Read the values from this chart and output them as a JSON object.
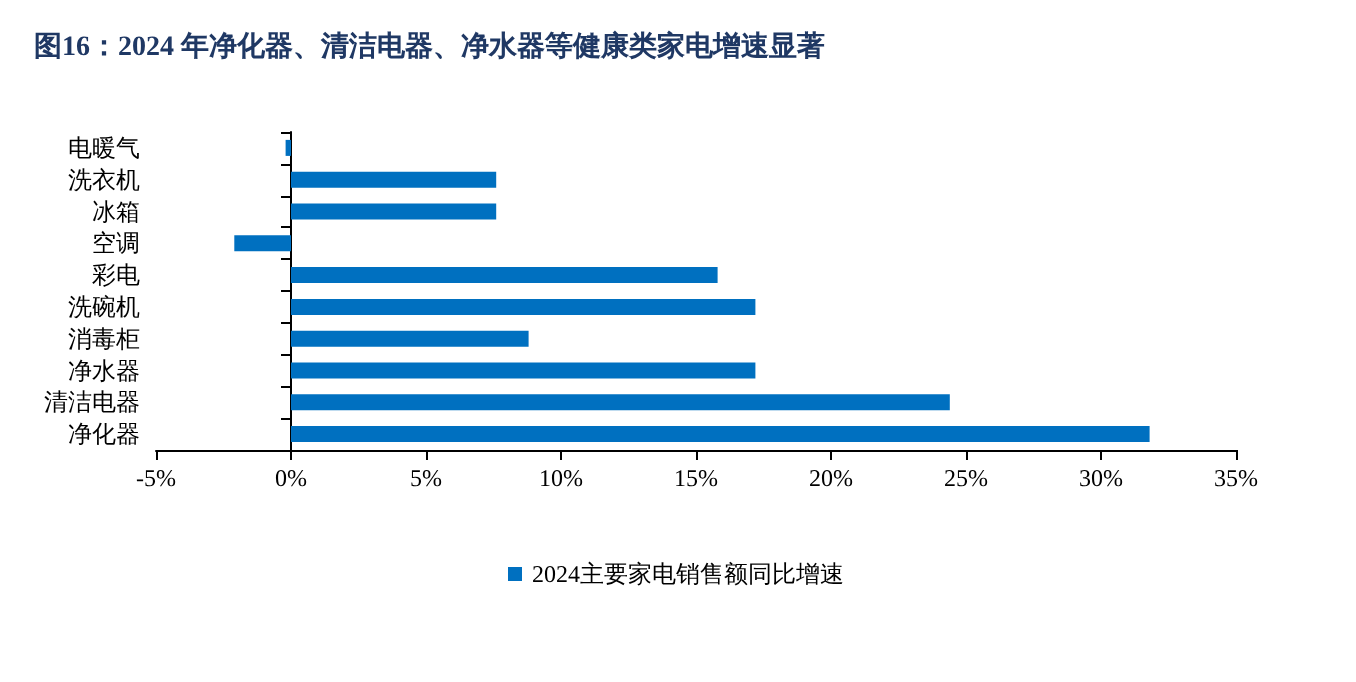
{
  "chart_data": {
    "type": "bar",
    "orientation": "horizontal",
    "title": "图16：2024 年净化器、清洁电器、净水器等健康类家电增速显著",
    "categories": [
      "电暖气",
      "洗衣机",
      "冰箱",
      "空调",
      "彩电",
      "洗碗机",
      "消毒柜",
      "净水器",
      "清洁电器",
      "净化器"
    ],
    "series": [
      {
        "name": "2024主要家电销售额同比增速",
        "color": "#0070c0",
        "values": [
          -0.2,
          7.6,
          7.6,
          -2.1,
          15.8,
          17.2,
          8.8,
          17.2,
          24.4,
          31.8
        ]
      }
    ],
    "xlim": [
      -5,
      35
    ],
    "xticks": [
      {
        "value": -5,
        "label": "-5%"
      },
      {
        "value": 0,
        "label": "0%"
      },
      {
        "value": 5,
        "label": "5%"
      },
      {
        "value": 10,
        "label": "10%"
      },
      {
        "value": 15,
        "label": "15%"
      },
      {
        "value": 20,
        "label": "20%"
      },
      {
        "value": 25,
        "label": "25%"
      },
      {
        "value": 30,
        "label": "30%"
      },
      {
        "value": 35,
        "label": "35%"
      }
    ],
    "legend": "bottom"
  }
}
